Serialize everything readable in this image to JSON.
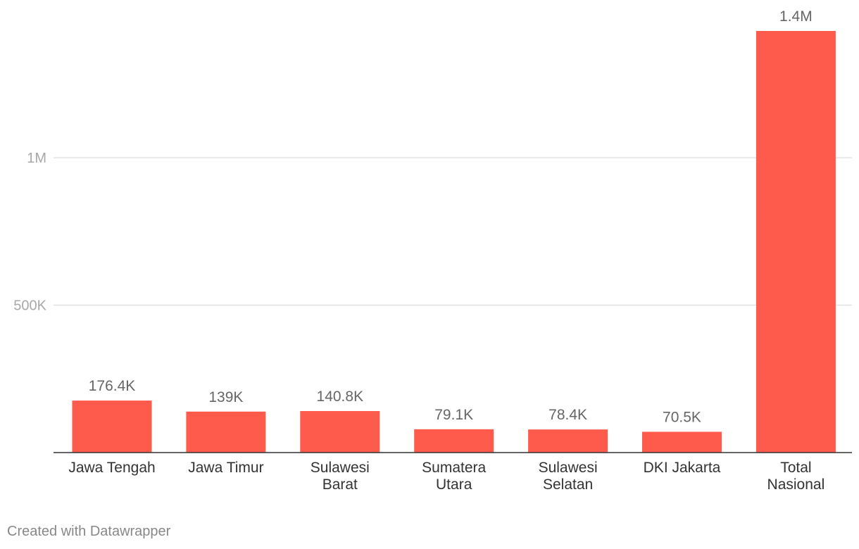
{
  "credit": "Created with Datawrapper",
  "colors": {
    "bar": "#fe5b4c",
    "grid": "#e3e3e3",
    "axis": "#333333",
    "tick_text": "#a8a8a8",
    "value_text": "#666666",
    "category_text": "#333333"
  },
  "chart_data": {
    "type": "bar",
    "categories": [
      [
        "Jawa Tengah"
      ],
      [
        "Jawa Timur"
      ],
      [
        "Sulawesi",
        "Barat"
      ],
      [
        "Sumatera",
        "Utara"
      ],
      [
        "Sulawesi",
        "Selatan"
      ],
      [
        "DKI Jakarta"
      ],
      [
        "Total",
        "Nasional"
      ]
    ],
    "values": [
      176400,
      139000,
      140800,
      79100,
      78400,
      70500,
      1430000
    ],
    "value_labels": [
      "176.4K",
      "139K",
      "140.8K",
      "79.1K",
      "78.4K",
      "70.5K",
      "1.4M"
    ],
    "yticks": [
      {
        "value": 500000,
        "label": "500K"
      },
      {
        "value": 1000000,
        "label": "1M"
      }
    ],
    "ylim": [
      0,
      1430000
    ],
    "grid": true
  }
}
